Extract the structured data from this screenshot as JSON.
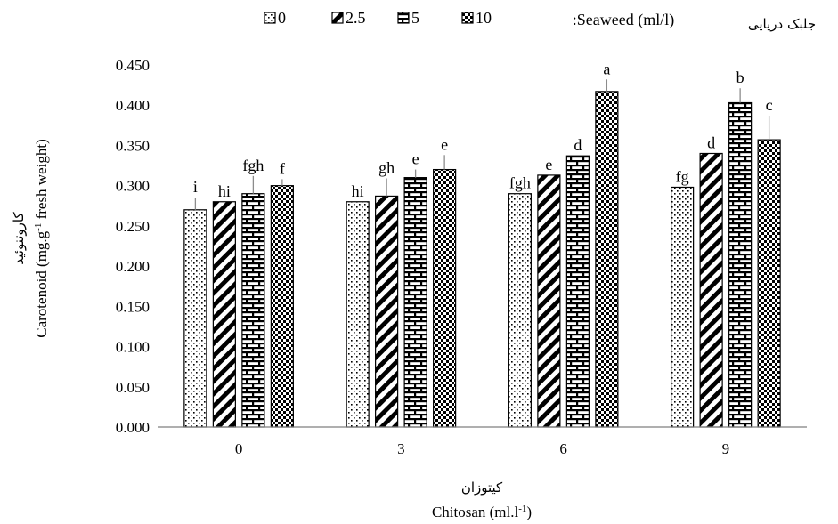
{
  "chart_data": {
    "type": "bar",
    "title": "",
    "legend": {
      "title_fa": "جلبک دریایی",
      "title_en": ":Seaweed (ml/l)",
      "placement": "top"
    },
    "xlabel_fa": "کیتوزان",
    "xlabel": "Chitosan (ml.l-1)",
    "ylabel_fa": "کاروتنوئید",
    "ylabel": "Carotenoid (mg.g-1 fresh weight)",
    "ylim": [
      0,
      0.45
    ],
    "y_ticks": [
      "0.000",
      "0.050",
      "0.100",
      "0.150",
      "0.200",
      "0.250",
      "0.300",
      "0.350",
      "0.400",
      "0.450"
    ],
    "categories": [
      "0",
      "3",
      "6",
      "9"
    ],
    "series": [
      {
        "name": "0",
        "pattern": "dots",
        "values": [
          0.27,
          0.28,
          0.29,
          0.298
        ],
        "error": [
          0.015,
          0.0,
          0.0,
          0.0
        ],
        "letters": [
          "i",
          "hi",
          "fgh",
          "fg"
        ]
      },
      {
        "name": "2.5",
        "pattern": "diagonal",
        "values": [
          0.28,
          0.287,
          0.313,
          0.34
        ],
        "error": [
          0.0,
          0.022,
          0.0,
          0.0
        ],
        "letters": [
          "hi",
          "gh",
          "e",
          "d"
        ]
      },
      {
        "name": "5",
        "pattern": "bricks",
        "values": [
          0.29,
          0.31,
          0.337,
          0.403
        ],
        "error": [
          0.022,
          0.01,
          0.0,
          0.018
        ],
        "letters": [
          "fgh",
          "e",
          "d",
          "b"
        ]
      },
      {
        "name": "10",
        "pattern": "checker",
        "values": [
          0.3,
          0.32,
          0.417,
          0.357
        ],
        "error": [
          0.008,
          0.018,
          0.015,
          0.03
        ],
        "letters": [
          "f",
          "e",
          "a",
          "c"
        ]
      }
    ]
  }
}
